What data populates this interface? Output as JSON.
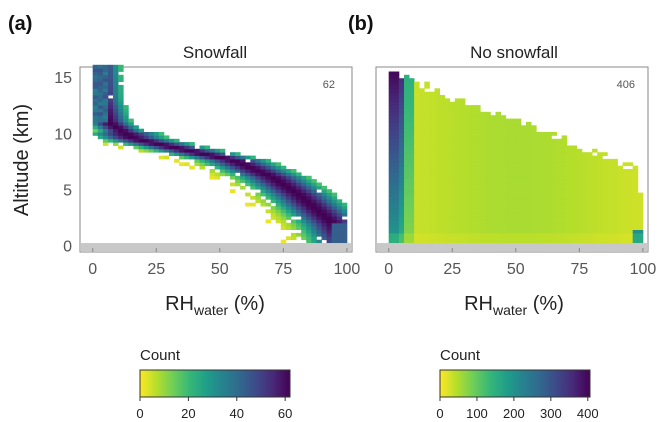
{
  "colors": {
    "colormap": [
      "#fde725",
      "#b5de2b",
      "#6ece58",
      "#35b779",
      "#1f9e89",
      "#26828e",
      "#31688e",
      "#3e4989",
      "#482878",
      "#440154"
    ],
    "ground": "#c8c8c8",
    "axis": "#888888"
  },
  "shared": {
    "ylabel": "Altitude (km)",
    "xlabel_main": "RH",
    "xlabel_sub": "water",
    "xlabel_unit": " (%)",
    "cb_title": "Count"
  },
  "chart_data": [
    {
      "type": "heatmap",
      "panel": "(a)",
      "title": "Snowfall",
      "count_annotation": "62",
      "xlim": [
        -5,
        102
      ],
      "ylim": [
        -0.5,
        16
      ],
      "xticks": [
        "0",
        "25",
        "50",
        "75",
        "100"
      ],
      "yticks": [
        "0",
        "5",
        "10",
        "15"
      ],
      "ground_km": 0.3,
      "colorbar": {
        "min": 0,
        "max": 62,
        "ticks": [
          "0",
          "20",
          "40",
          "60"
        ]
      },
      "ridge": [
        [
          1,
          16
        ],
        [
          2,
          13
        ],
        [
          5,
          11
        ],
        [
          15,
          9.5
        ],
        [
          35,
          8.5
        ],
        [
          55,
          7.5
        ],
        [
          70,
          6
        ],
        [
          80,
          4.5
        ],
        [
          88,
          3
        ],
        [
          94,
          1.8
        ],
        [
          98,
          0.5
        ]
      ],
      "max_value": 62
    },
    {
      "type": "heatmap",
      "panel": "(b)",
      "title": "No snowfall",
      "count_annotation": "406",
      "xlim": [
        -5,
        102
      ],
      "ylim": [
        -0.5,
        16
      ],
      "xticks": [
        "0",
        "25",
        "50",
        "75",
        "100"
      ],
      "yticks": [
        "0",
        "5",
        "10",
        "15"
      ],
      "ground_km": 0.3,
      "colorbar": {
        "min": 0,
        "max": 406,
        "ticks": [
          "0",
          "100",
          "200",
          "300",
          "400"
        ]
      },
      "ridge": [
        [
          1,
          16
        ],
        [
          1,
          12
        ],
        [
          2,
          9
        ],
        [
          2,
          5
        ],
        [
          3,
          1
        ]
      ],
      "max_value": 406
    }
  ]
}
